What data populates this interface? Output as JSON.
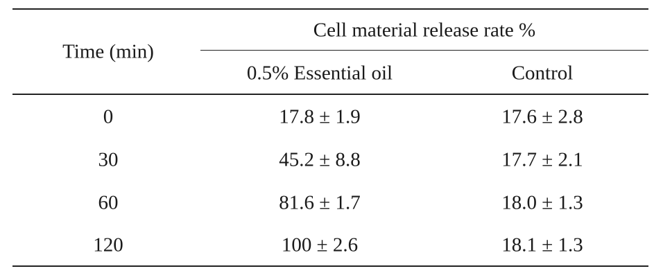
{
  "table": {
    "row_header": "Time (min)",
    "group_header": "Cell material release rate %",
    "columns": [
      "0.5% Essential oil",
      "Control"
    ],
    "rows": [
      {
        "time": "0",
        "oil": "17.8 ± 1.9",
        "control": "17.6 ± 2.8"
      },
      {
        "time": "30",
        "oil": "45.2 ± 8.8",
        "control": "17.7 ± 2.1"
      },
      {
        "time": "60",
        "oil": "81.6 ± 1.7",
        "control": "18.0 ± 1.3"
      },
      {
        "time": "120",
        "oil": "100 ± 2.6",
        "control": "18.1 ± 1.3"
      }
    ]
  }
}
